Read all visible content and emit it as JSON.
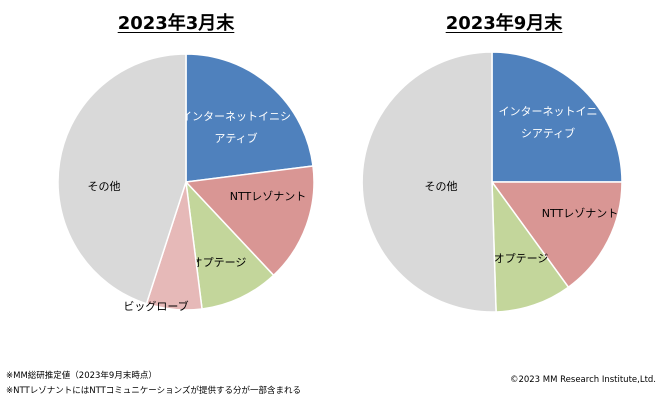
{
  "chart_data": [
    {
      "type": "pie",
      "title": "2023年3月末",
      "slices": [
        {
          "label": "インターネットイニシアティブ",
          "label_lines": [
            "インターネットイニシ",
            "アティブ"
          ],
          "value": 23,
          "color": "#4f81bd",
          "label_color": "#ffffff"
        },
        {
          "label": "NTTレゾナント",
          "label_lines": [
            "NTTレゾナント"
          ],
          "value": 15,
          "color": "#d99694",
          "label_color": "#000000"
        },
        {
          "label": "オプテージ",
          "label_lines": [
            "オプテージ"
          ],
          "value": 10,
          "color": "#c3d69b",
          "label_color": "#000000"
        },
        {
          "label": "ビッグローブ",
          "label_lines": [
            "ビッグローブ"
          ],
          "value": 7,
          "color": "#e6b9b8",
          "label_color": "#000000"
        },
        {
          "label": "その他",
          "label_lines": [
            "その他"
          ],
          "value": 45,
          "color": "#d9d9d9",
          "label_color": "#000000"
        }
      ]
    },
    {
      "type": "pie",
      "title": "2023年9月末",
      "slices": [
        {
          "label": "インターネットイニシアティブ",
          "label_lines": [
            "インターネットイニ",
            "シアティブ"
          ],
          "value": 25,
          "color": "#4f81bd",
          "label_color": "#ffffff"
        },
        {
          "label": "NTTレゾナント",
          "label_lines": [
            "NTTレゾナント"
          ],
          "value": 15,
          "color": "#d99694",
          "label_color": "#000000"
        },
        {
          "label": "オプテージ",
          "label_lines": [
            "オプテージ"
          ],
          "value": 9.5,
          "color": "#c3d69b",
          "label_color": "#000000"
        },
        {
          "label": "その他",
          "label_lines": [
            "その他"
          ],
          "value": 50.5,
          "color": "#d9d9d9",
          "label_color": "#000000"
        }
      ]
    }
  ],
  "footnotes": [
    "※MM総研推定値（2023年9月末時点）",
    "※NTTレゾナントにはNTTコミュニケーションズが提供する分が一部含まれる"
  ],
  "copyright": "©2023 MM Research Institute,Ltd."
}
